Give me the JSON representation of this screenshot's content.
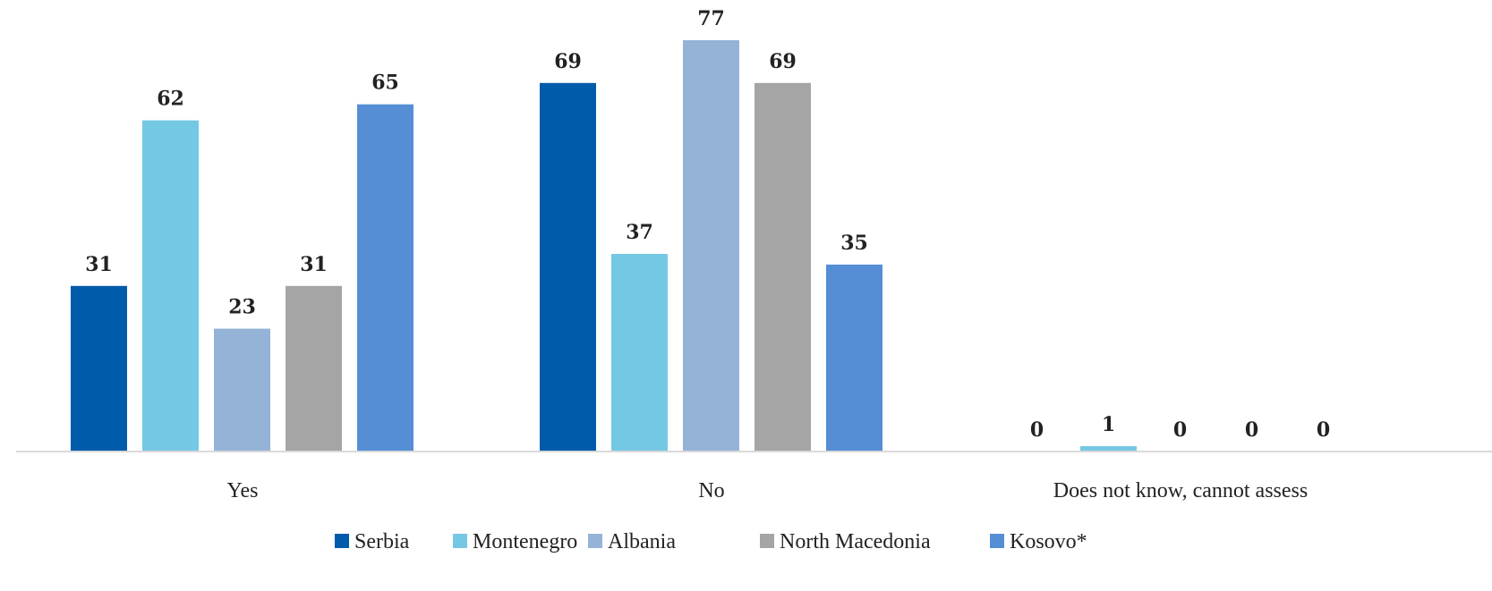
{
  "chart_data": {
    "type": "bar",
    "categories": [
      "Yes",
      "No",
      "Does not know, cannot assess"
    ],
    "series": [
      {
        "name": "Serbia",
        "color": "#005BAA",
        "values": [
          31,
          69,
          0
        ]
      },
      {
        "name": "Montenegro",
        "color": "#74C8E4",
        "values": [
          62,
          37,
          1
        ]
      },
      {
        "name": "Albania",
        "color": "#95B3D7",
        "values": [
          23,
          77,
          0
        ]
      },
      {
        "name": "North Macedonia",
        "color": "#A5A5A5",
        "values": [
          31,
          69,
          0
        ]
      },
      {
        "name": "Kosovo*",
        "color": "#558ED5",
        "values": [
          65,
          35,
          0
        ]
      }
    ],
    "ylim": [
      0,
      77
    ],
    "grid": false,
    "legend_position": "bottom",
    "axis_color": "#D9D9D9"
  }
}
